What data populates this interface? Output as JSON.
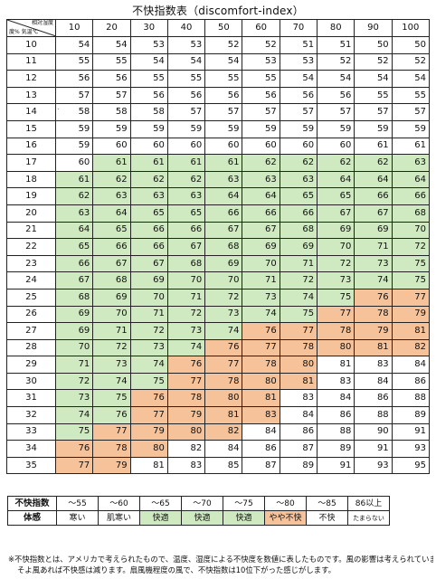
{
  "title": "不快指数表（discomfort-index）",
  "corner": {
    "humidity_label": "相対湿度",
    "temp_label": "度% 気温℃"
  },
  "humidity_columns": [
    "10",
    "20",
    "30",
    "40",
    "50",
    "60",
    "70",
    "80",
    "90",
    "100"
  ],
  "colors": {
    "green": "#cfeac0",
    "orange": "#f6c29a",
    "white": "#ffffff"
  },
  "rows": [
    {
      "temp": "10",
      "values": [
        "54",
        "54",
        "53",
        "53",
        "52",
        "52",
        "51",
        "51",
        "50",
        "50"
      ],
      "shade": "wwwwwwwwww"
    },
    {
      "temp": "11",
      "values": [
        "55",
        "55",
        "54",
        "54",
        "54",
        "53",
        "53",
        "52",
        "52",
        "52"
      ],
      "shade": "wwwwwwwwww"
    },
    {
      "temp": "12",
      "values": [
        "56",
        "56",
        "55",
        "55",
        "55",
        "55",
        "54",
        "54",
        "54",
        "54"
      ],
      "shade": "wwwwwwwwww"
    },
    {
      "temp": "13",
      "values": [
        "57",
        "57",
        "56",
        "56",
        "56",
        "56",
        "56",
        "56",
        "55",
        "55"
      ],
      "shade": "wwwwwwwwww"
    },
    {
      "temp": "14",
      "values": [
        "58",
        "58",
        "58",
        "57",
        "57",
        "57",
        "57",
        "57",
        "57",
        "57"
      ],
      "shade": "wwwwwwwwww"
    },
    {
      "temp": "15",
      "values": [
        "59",
        "59",
        "59",
        "59",
        "59",
        "59",
        "59",
        "59",
        "59",
        "59"
      ],
      "shade": "wwwwwwwwww"
    },
    {
      "temp": "16",
      "values": [
        "59",
        "60",
        "60",
        "60",
        "60",
        "60",
        "60",
        "60",
        "61",
        "61"
      ],
      "shade": "wwwwwwwwww"
    },
    {
      "temp": "17",
      "values": [
        "60",
        "61",
        "61",
        "61",
        "61",
        "62",
        "62",
        "62",
        "62",
        "63"
      ],
      "shade": "wggggggggg"
    },
    {
      "temp": "18",
      "values": [
        "61",
        "62",
        "62",
        "62",
        "63",
        "63",
        "63",
        "64",
        "64",
        "64"
      ],
      "shade": "gggggggggg"
    },
    {
      "temp": "19",
      "values": [
        "62",
        "63",
        "63",
        "63",
        "64",
        "64",
        "65",
        "65",
        "66",
        "66"
      ],
      "shade": "gggggggggg"
    },
    {
      "temp": "20",
      "values": [
        "63",
        "64",
        "65",
        "65",
        "66",
        "66",
        "66",
        "67",
        "67",
        "68"
      ],
      "shade": "gggggggggg"
    },
    {
      "temp": "21",
      "values": [
        "64",
        "65",
        "66",
        "66",
        "67",
        "67",
        "68",
        "69",
        "69",
        "70"
      ],
      "shade": "gggggggggg"
    },
    {
      "temp": "22",
      "values": [
        "65",
        "66",
        "66",
        "67",
        "68",
        "69",
        "69",
        "70",
        "71",
        "72"
      ],
      "shade": "gggggggggg"
    },
    {
      "temp": "23",
      "values": [
        "66",
        "67",
        "67",
        "68",
        "69",
        "70",
        "71",
        "72",
        "73",
        "75"
      ],
      "shade": "gggggggggg"
    },
    {
      "temp": "24",
      "values": [
        "67",
        "68",
        "69",
        "70",
        "70",
        "71",
        "72",
        "73",
        "74",
        "75"
      ],
      "shade": "gggggggggg"
    },
    {
      "temp": "25",
      "values": [
        "68",
        "69",
        "70",
        "71",
        "72",
        "73",
        "74",
        "75",
        "76",
        "77"
      ],
      "shade": "ggggggggoo"
    },
    {
      "temp": "26",
      "values": [
        "69",
        "70",
        "71",
        "72",
        "73",
        "74",
        "75",
        "77",
        "78",
        "79"
      ],
      "shade": "gggggggooo"
    },
    {
      "temp": "27",
      "values": [
        "69",
        "71",
        "72",
        "73",
        "74",
        "76",
        "77",
        "78",
        "79",
        "81"
      ],
      "shade": "gggggooooo"
    },
    {
      "temp": "28",
      "values": [
        "70",
        "72",
        "73",
        "74",
        "76",
        "77",
        "78",
        "80",
        "81",
        "82"
      ],
      "shade": "ggggoooooo"
    },
    {
      "temp": "29",
      "values": [
        "71",
        "73",
        "74",
        "76",
        "77",
        "78",
        "80",
        "81",
        "83",
        "84"
      ],
      "shade": "gggoooowww"
    },
    {
      "temp": "30",
      "values": [
        "72",
        "74",
        "75",
        "77",
        "78",
        "80",
        "81",
        "83",
        "84",
        "86"
      ],
      "shade": "gggoooowww"
    },
    {
      "temp": "31",
      "values": [
        "73",
        "75",
        "76",
        "78",
        "80",
        "81",
        "83",
        "84",
        "86",
        "88"
      ],
      "shade": "ggoooowwww"
    },
    {
      "temp": "32",
      "values": [
        "74",
        "76",
        "77",
        "79",
        "81",
        "83",
        "84",
        "86",
        "88",
        "89"
      ],
      "shade": "ggoooowwww"
    },
    {
      "temp": "33",
      "values": [
        "75",
        "77",
        "79",
        "80",
        "82",
        "84",
        "86",
        "88",
        "90",
        "91"
      ],
      "shade": "goooowwwww"
    },
    {
      "temp": "34",
      "values": [
        "76",
        "78",
        "80",
        "82",
        "84",
        "86",
        "87",
        "89",
        "91",
        "93"
      ],
      "shade": "ooowwwwwww"
    },
    {
      "temp": "35",
      "values": [
        "77",
        "79",
        "81",
        "83",
        "85",
        "87",
        "89",
        "91",
        "93",
        "95"
      ],
      "shade": "oowwwwwwww"
    }
  ],
  "legend": {
    "index_label": "不快指数",
    "feeling_label": "体感",
    "ranges": [
      "～55",
      "～60",
      "～65",
      "～70",
      "～75",
      "～80",
      "～85",
      "86以上"
    ],
    "feelings": [
      "寒い",
      "肌寒い",
      "快適",
      "快適",
      "快適",
      "やや不快",
      "不快",
      "たまらない"
    ],
    "feeling_shade": [
      "w",
      "w",
      "g",
      "g",
      "g",
      "o",
      "w",
      "w"
    ]
  },
  "notes": [
    "※不快指数とは、アメリカで考えられたもので、温度、湿度による不快度を数値に表したものです。風の影響は考えられていません",
    "そよ風あれば不快感は減ります。扇風機程度の風で、不快指数は10位下がった感じがします。"
  ]
}
